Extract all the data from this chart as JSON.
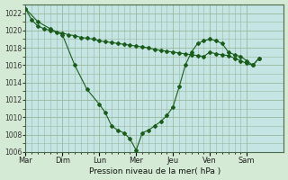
{
  "xlabel": "Pression niveau de la mer( hPa )",
  "background_color": "#d4ead4",
  "plot_bg_color": "#c5e5e5",
  "grid_color": "#9ab89a",
  "line_color": "#1a5c1a",
  "ylim": [
    1006,
    1023
  ],
  "yticks": [
    1006,
    1008,
    1010,
    1012,
    1014,
    1016,
    1018,
    1020,
    1022
  ],
  "day_labels": [
    "Mar",
    "Dim",
    "Lun",
    "Mer",
    "Jeu",
    "Ven",
    "Sam"
  ],
  "day_positions": [
    0,
    6,
    12,
    18,
    24,
    30,
    36
  ],
  "xlim": [
    0,
    42
  ],
  "series1_x": [
    0,
    1,
    2,
    3,
    4,
    5,
    6,
    7,
    8,
    9,
    10,
    11,
    12,
    13,
    14,
    15,
    16,
    17,
    18,
    19,
    20,
    21,
    22,
    23,
    24,
    25,
    26,
    27,
    28,
    29,
    30,
    31,
    32,
    33,
    34,
    35,
    36,
    37,
    38
  ],
  "series1_y": [
    1022.5,
    1021.2,
    1020.5,
    1020.2,
    1020.0,
    1019.8,
    1019.7,
    1019.5,
    1019.4,
    1019.2,
    1019.1,
    1019.0,
    1018.8,
    1018.7,
    1018.6,
    1018.5,
    1018.4,
    1018.3,
    1018.2,
    1018.1,
    1018.0,
    1017.8,
    1017.7,
    1017.6,
    1017.5,
    1017.4,
    1017.3,
    1017.2,
    1017.1,
    1017.0,
    1017.5,
    1017.3,
    1017.2,
    1017.1,
    1016.8,
    1016.5,
    1016.2,
    1016.0,
    1016.8
  ],
  "series2_x": [
    0,
    2,
    4,
    6,
    8,
    10,
    12,
    13,
    14,
    15,
    16,
    17,
    18,
    19,
    20,
    21,
    22,
    23,
    24,
    25,
    26,
    27,
    28,
    29,
    30,
    31,
    32,
    33,
    34,
    35,
    36,
    37,
    38
  ],
  "series2_y": [
    1022.5,
    1021.0,
    1020.2,
    1019.5,
    1016.0,
    1013.2,
    1011.5,
    1010.5,
    1009.0,
    1008.5,
    1008.2,
    1007.5,
    1006.2,
    1008.2,
    1008.5,
    1009.0,
    1009.5,
    1010.2,
    1011.2,
    1013.5,
    1016.0,
    1017.5,
    1018.5,
    1018.8,
    1019.0,
    1018.8,
    1018.5,
    1017.5,
    1017.2,
    1017.0,
    1016.5,
    1016.0,
    1016.8
  ]
}
